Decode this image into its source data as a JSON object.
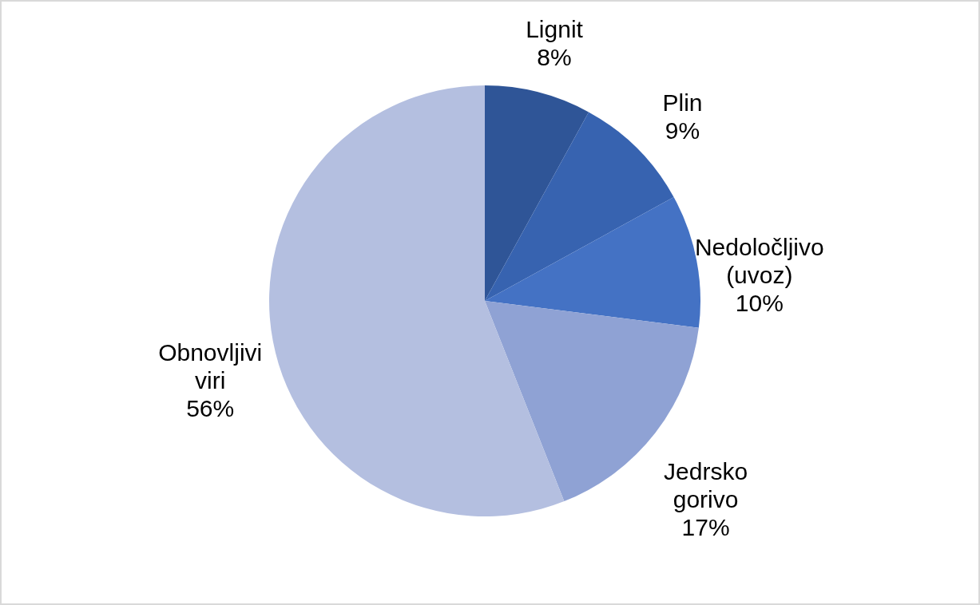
{
  "chart_data": {
    "type": "pie",
    "categories": [
      "Lignit",
      "Plin",
      "Nedoločljivo (uvoz)",
      "Jedrsko gorivo",
      "Obnovljivi viri"
    ],
    "values": [
      8,
      9,
      10,
      17,
      56
    ],
    "colors": [
      "#2f5597",
      "#3763b0",
      "#4472c4",
      "#8fa2d4",
      "#b4bfe0"
    ],
    "value_labels": [
      "8%",
      "9%",
      "10%",
      "17%",
      "56%"
    ],
    "legend": false
  }
}
